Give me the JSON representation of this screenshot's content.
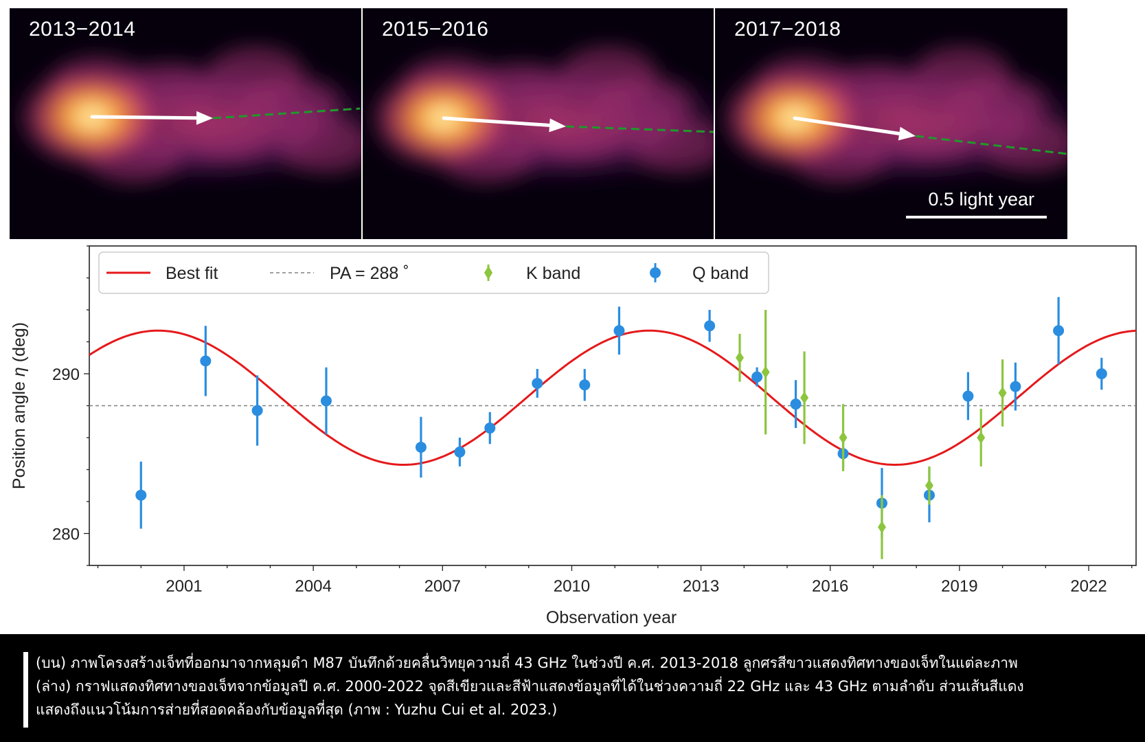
{
  "panels": [
    {
      "label": "2013−2014"
    },
    {
      "label": "2015−2016"
    },
    {
      "label": "2017−2018"
    }
  ],
  "scalebar_label": "0.5 light year",
  "colors": {
    "best_fit": "#e5191b",
    "pa_line": "#808080",
    "k_band": "#8cc63e",
    "q_band": "#2a8de0",
    "arrow": "#ffffff",
    "extension": "#1f9a2a"
  },
  "chart_data": {
    "type": "scatter",
    "xlabel": "Observation year",
    "ylabel": "Position angle η (deg)",
    "xlim": [
      1998.8,
      2023.1
    ],
    "ylim": [
      278,
      298
    ],
    "xticks": [
      2001,
      2004,
      2007,
      2010,
      2013,
      2016,
      2019,
      2022
    ],
    "yticks": [
      280,
      290
    ],
    "grid": false,
    "legend_position": "top-left",
    "legend": {
      "best_fit": "Best fit",
      "pa": "PA = 288 ˚",
      "k_band": "K band",
      "q_band": "Q band"
    },
    "pa_reference": 288,
    "best_fit": {
      "center": 288.5,
      "amplitude": 4.2,
      "period_years": 11.4,
      "peak_year": 2000.4
    },
    "series": [
      {
        "name": "Q band",
        "points": [
          {
            "x": 2000.0,
            "y": 282.4,
            "err": 2.1
          },
          {
            "x": 2001.5,
            "y": 290.8,
            "err": 2.2
          },
          {
            "x": 2002.7,
            "y": 287.7,
            "err": 2.2
          },
          {
            "x": 2004.3,
            "y": 288.3,
            "err": 2.1
          },
          {
            "x": 2006.5,
            "y": 285.4,
            "err": 1.9
          },
          {
            "x": 2007.4,
            "y": 285.1,
            "err": 0.9
          },
          {
            "x": 2008.1,
            "y": 286.6,
            "err": 1.0
          },
          {
            "x": 2009.2,
            "y": 289.4,
            "err": 0.9
          },
          {
            "x": 2010.3,
            "y": 289.3,
            "err": 1.0
          },
          {
            "x": 2011.1,
            "y": 292.7,
            "err": 1.5
          },
          {
            "x": 2013.2,
            "y": 293.0,
            "err": 1.0
          },
          {
            "x": 2014.3,
            "y": 289.8,
            "err": 0.6
          },
          {
            "x": 2015.2,
            "y": 288.1,
            "err": 1.5
          },
          {
            "x": 2016.3,
            "y": 285.0,
            "err": 0.9
          },
          {
            "x": 2017.2,
            "y": 281.9,
            "err": 2.2
          },
          {
            "x": 2018.3,
            "y": 282.4,
            "err": 1.7
          },
          {
            "x": 2019.2,
            "y": 288.6,
            "err": 1.5
          },
          {
            "x": 2020.3,
            "y": 289.2,
            "err": 1.5
          },
          {
            "x": 2021.3,
            "y": 292.7,
            "err": 2.1
          },
          {
            "x": 2022.3,
            "y": 290.0,
            "err": 1.0
          }
        ]
      },
      {
        "name": "K band",
        "points": [
          {
            "x": 2013.9,
            "y": 291.0,
            "err": 1.5
          },
          {
            "x": 2014.5,
            "y": 290.1,
            "err": 3.9
          },
          {
            "x": 2015.4,
            "y": 288.5,
            "err": 2.9
          },
          {
            "x": 2016.3,
            "y": 286.0,
            "err": 2.1
          },
          {
            "x": 2017.2,
            "y": 280.4,
            "err": 2.0
          },
          {
            "x": 2018.3,
            "y": 283.0,
            "err": 1.2
          },
          {
            "x": 2019.5,
            "y": 286.0,
            "err": 1.8
          },
          {
            "x": 2020.0,
            "y": 288.8,
            "err": 2.1
          }
        ]
      }
    ]
  },
  "caption": {
    "line1": "(บน) ภาพโครงสร้างเจ็ทที่ออกมาจากหลุมดำ M87 บันทึกด้วยคลื่นวิทยุความถี่ 43 GHz ในช่วงปี ค.ศ. 2013-2018 ลูกศรสีขาวแสดงทิศทางของเจ็ทในแต่ละภาพ",
    "line2": "(ล่าง) กราฟแสดงทิศทางของเจ็ทจากข้อมูลปี ค.ศ. 2000-2022 จุดสีเขียวและสีฟ้าแสดงข้อมูลที่ได้ในช่วงความถี่ 22 GHz และ 43 GHz ตามลำดับ ส่วนเส้นสีแดง",
    "line3": "แสดงถึงแนวโน้มการส่ายที่สอดคล้องกับข้อมูลที่สุด (ภาพ : Yuzhu Cui et al. 2023.)"
  }
}
